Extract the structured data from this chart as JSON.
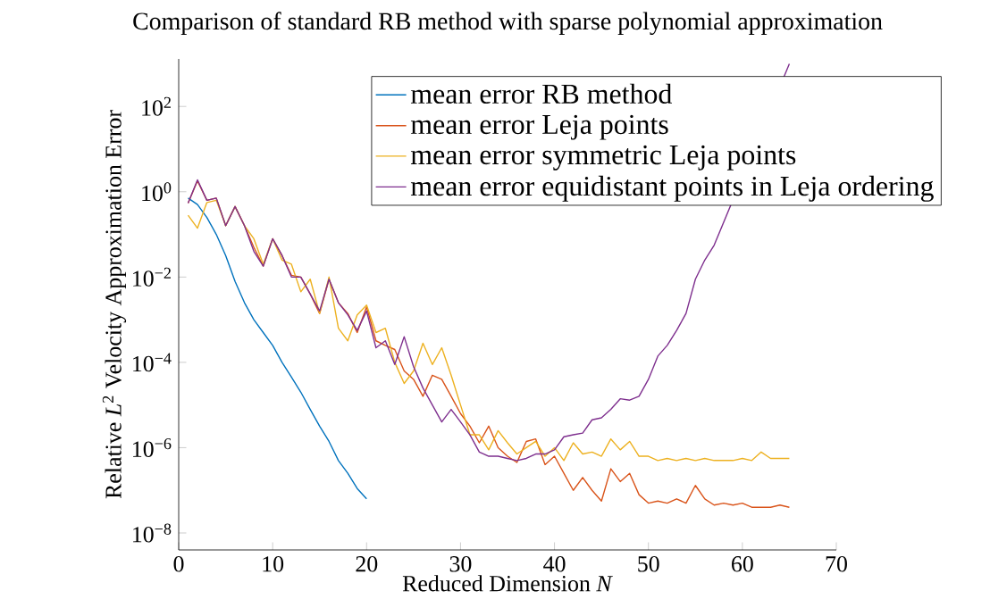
{
  "chart_data": {
    "type": "line",
    "title": "Comparison of standard RB method with sparse polynomial approximation",
    "xlabel": "Reduced Dimension *N*",
    "ylabel": "Relative *L*$^{2}$ Velocity Approximation Error",
    "x": [
      1,
      2,
      3,
      4,
      5,
      6,
      7,
      8,
      9,
      10,
      11,
      12,
      13,
      14,
      15,
      16,
      17,
      18,
      19,
      20,
      21,
      22,
      23,
      24,
      25,
      26,
      27,
      28,
      29,
      30,
      31,
      32,
      33,
      34,
      35,
      36,
      37,
      38,
      39,
      40,
      41,
      42,
      43,
      44,
      45,
      46,
      47,
      48,
      49,
      50,
      51,
      52,
      53,
      54,
      55,
      56,
      57,
      58,
      59,
      60,
      61,
      62,
      63,
      64,
      65
    ],
    "series": [
      {
        "name": "mean error RB method",
        "color": "#0072bd",
        "x": [
          1,
          2,
          3,
          4,
          5,
          6,
          7,
          8,
          9,
          10,
          11,
          12,
          13,
          14,
          15,
          16,
          17,
          18,
          19,
          20
        ],
        "values": [
          0.71,
          0.5,
          0.25,
          0.1,
          0.032,
          0.0079,
          0.0025,
          0.001,
          0.0005,
          0.00025,
          0.0001,
          4.5e-05,
          2e-05,
          7.9e-06,
          3.2e-06,
          1.4e-06,
          5e-07,
          2.5e-07,
          1.1e-07,
          6.3e-08
        ]
      },
      {
        "name": "mean error Leja points",
        "color": "#d95319",
        "values": [
          0.54,
          1.8,
          0.63,
          0.71,
          0.16,
          0.45,
          0.16,
          0.05,
          0.018,
          0.079,
          0.032,
          0.011,
          0.01,
          0.004,
          0.0014,
          0.0089,
          0.0025,
          0.0014,
          0.0005,
          0.002,
          0.00032,
          0.00025,
          0.0002,
          6.3e-05,
          4e-05,
          1.6e-05,
          5e-05,
          4e-05,
          1.6e-05,
          6.3e-06,
          3.2e-06,
          1.3e-06,
          3.2e-06,
          1e-06,
          6.3e-07,
          4.5e-07,
          1.4e-06,
          1.6e-06,
          4e-07,
          6.3e-07,
          2.5e-07,
          1e-07,
          2e-07,
          1e-07,
          5.6e-08,
          3.2e-07,
          1.6e-07,
          2.5e-07,
          7.9e-08,
          5e-08,
          5.6e-08,
          5e-08,
          6.3e-08,
          5e-08,
          1.3e-07,
          6.3e-08,
          4.5e-08,
          5e-08,
          4.5e-08,
          5e-08,
          4e-08,
          4e-08,
          4e-08,
          4.5e-08,
          4e-08
        ]
      },
      {
        "name": "mean error symmetric Leja points",
        "color": "#edb120",
        "values": [
          0.28,
          0.14,
          0.56,
          0.63,
          0.16,
          0.45,
          0.16,
          0.079,
          0.02,
          0.079,
          0.025,
          0.02,
          0.0045,
          0.0089,
          0.0014,
          0.01,
          0.00063,
          0.00032,
          0.0013,
          0.0022,
          0.0005,
          0.00063,
          0.0001,
          3.2e-05,
          6.3e-05,
          0.00028,
          8.9e-05,
          0.00022,
          5e-05,
          1e-05,
          2e-06,
          2e-06,
          8.9e-07,
          2.5e-06,
          1.3e-06,
          7.1e-07,
          1e-06,
          1.4e-06,
          6.3e-07,
          1e-06,
          5e-07,
          1.3e-06,
          7.1e-07,
          7.9e-07,
          6.3e-07,
          1.6e-06,
          8.9e-07,
          1.4e-06,
          6.3e-07,
          6.3e-07,
          5e-07,
          5.6e-07,
          5e-07,
          5.6e-07,
          5e-07,
          5.6e-07,
          5e-07,
          5e-07,
          5e-07,
          5.6e-07,
          5e-07,
          7.9e-07,
          5.6e-07,
          5.6e-07,
          5.6e-07
        ]
      },
      {
        "name": "mean error equidistant points in Leja ordering",
        "color": "#7e2f8e",
        "values": [
          0.54,
          1.9,
          0.63,
          0.71,
          0.16,
          0.45,
          0.16,
          0.04,
          0.018,
          0.079,
          0.032,
          0.01,
          0.01,
          0.004,
          0.0016,
          0.0089,
          0.0025,
          0.0013,
          0.00056,
          0.0016,
          0.00022,
          0.00032,
          8.9e-05,
          0.0004,
          7.9e-05,
          2.5e-05,
          1e-05,
          4e-06,
          7.9e-06,
          4e-06,
          2e-06,
          7.9e-07,
          6.3e-07,
          6.3e-07,
          5.6e-07,
          5e-07,
          5.6e-07,
          7.1e-07,
          7.1e-07,
          8.9e-07,
          1.8e-06,
          2e-06,
          2.2e-06,
          4.5e-06,
          5e-06,
          7.9e-06,
          1.4e-05,
          1.3e-05,
          1.6e-05,
          4e-05,
          0.00014,
          0.00025,
          0.00056,
          0.0014,
          0.0089,
          0.025,
          0.056,
          null,
          null,
          null,
          null,
          null,
          null,
          null,
          1000
        ]
      }
    ],
    "log": "y",
    "xlim": [
      0,
      70
    ],
    "ylim": [
      4e-09,
      1300
    ],
    "xticks": [
      0,
      10,
      20,
      30,
      40,
      50,
      60,
      70
    ],
    "yticks": [
      {
        "value": 1e-08,
        "label": "10$^{−8}$"
      },
      {
        "value": 1e-06,
        "label": "10$^{−6}$"
      },
      {
        "value": 0.0001,
        "label": "10$^{−4}$"
      },
      {
        "value": 0.01,
        "label": "10$^{−2}$"
      },
      {
        "value": 1,
        "label": "10$^{0}$"
      },
      {
        "value": 100,
        "label": "10$^{2}$"
      }
    ],
    "legend": "top right",
    "grid": false,
    "marker": "none",
    "line_style": "solid"
  }
}
